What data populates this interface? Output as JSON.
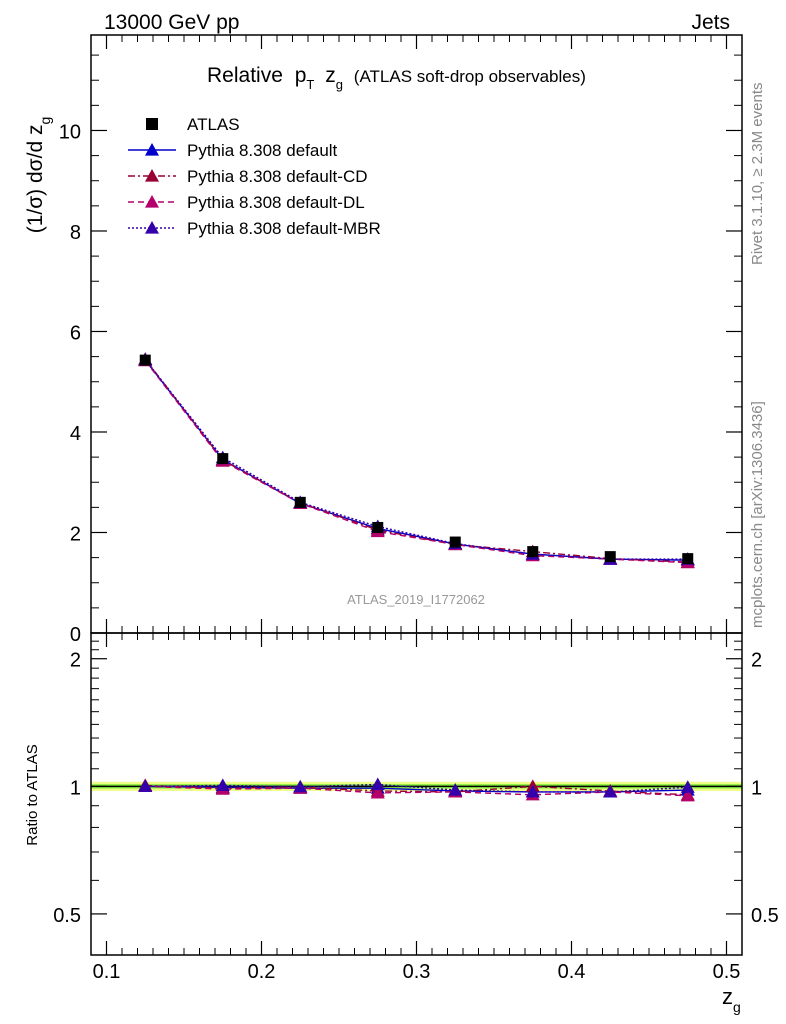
{
  "header": {
    "energy": "13000 GeV pp",
    "process": "Jets"
  },
  "title": {
    "main": "Relative",
    "p": "p",
    "p_sub": "T",
    "z": "z",
    "z_sub": "g",
    "extra": "(ATLAS soft-drop observables)"
  },
  "side_labels": {
    "rivet": "Rivet 3.1.10, ≥ 2.3M events",
    "mcplots": "mcplots.cern.ch [arXiv:1306.3436]"
  },
  "watermark": "ATLAS_2019_I1772062",
  "axes": {
    "ylabel_prefix": "(1/σ) dσ/d z",
    "ylabel_sub": "g",
    "ratio_ylabel": "Ratio to ATLAS",
    "xlabel": "z",
    "xlabel_sub": "g"
  },
  "colors": {
    "data": "#000000",
    "default": "#0000cc",
    "cd": "#990033",
    "dl": "#b3006b",
    "mbr": "#3300aa",
    "band_inner": "#88ee44",
    "band_outer": "#eeff88"
  },
  "chart_data": {
    "type": "line",
    "x": [
      0.125,
      0.175,
      0.225,
      0.275,
      0.325,
      0.375,
      0.425,
      0.475
    ],
    "xlim": [
      0.09,
      0.51
    ],
    "xticks": [
      "0.1",
      "0.2",
      "0.3",
      "0.4",
      "0.5"
    ],
    "ylim": [
      0,
      11.9
    ],
    "yticks": [
      "0",
      "2",
      "4",
      "6",
      "8",
      "10"
    ],
    "ratio_ylim": [
      0.4,
      2.3
    ],
    "ratio_yticks": [
      "0.5",
      "1",
      "2"
    ],
    "grid": false,
    "legend_position": "top-left",
    "legend": [
      {
        "key": "data",
        "label": "ATLAS",
        "style": "data"
      },
      {
        "key": "default",
        "label": "Pythia 8.308 default",
        "style": "solid"
      },
      {
        "key": "cd",
        "label": "Pythia 8.308 default-CD",
        "style": "dashdot"
      },
      {
        "key": "dl",
        "label": "Pythia 8.308 default-DL",
        "style": "dashed"
      },
      {
        "key": "mbr",
        "label": "Pythia 8.308 default-MBR",
        "style": "dotted"
      }
    ],
    "data": {
      "name": "ATLAS",
      "values": [
        5.43,
        3.47,
        2.6,
        2.1,
        1.81,
        1.62,
        1.52,
        1.48
      ]
    },
    "series": [
      {
        "key": "default",
        "name": "Pythia 8.308 default",
        "values": [
          5.43,
          3.45,
          2.58,
          2.08,
          1.77,
          1.57,
          1.47,
          1.45
        ],
        "ratio": [
          1.0,
          0.995,
          0.99,
          0.99,
          0.975,
          0.97,
          0.97,
          0.98
        ]
      },
      {
        "key": "cd",
        "name": "Pythia 8.308 default-CD",
        "values": [
          5.45,
          3.44,
          2.59,
          2.05,
          1.76,
          1.62,
          1.48,
          1.41
        ],
        "ratio": [
          1.005,
          0.99,
          0.995,
          0.975,
          0.97,
          1.0,
          0.975,
          0.955
        ]
      },
      {
        "key": "dl",
        "name": "Pythia 8.308 default-DL",
        "values": [
          5.42,
          3.42,
          2.58,
          2.02,
          1.76,
          1.54,
          1.47,
          1.4
        ],
        "ratio": [
          1.0,
          0.985,
          0.99,
          0.965,
          0.97,
          0.955,
          0.97,
          0.95
        ]
      },
      {
        "key": "mbr",
        "name": "Pythia 8.308 default-MBR",
        "values": [
          5.44,
          3.49,
          2.6,
          2.12,
          1.78,
          1.57,
          1.47,
          1.47
        ],
        "ratio": [
          1.0,
          1.005,
          0.998,
          1.01,
          0.98,
          0.97,
          0.97,
          0.995
        ]
      }
    ]
  }
}
